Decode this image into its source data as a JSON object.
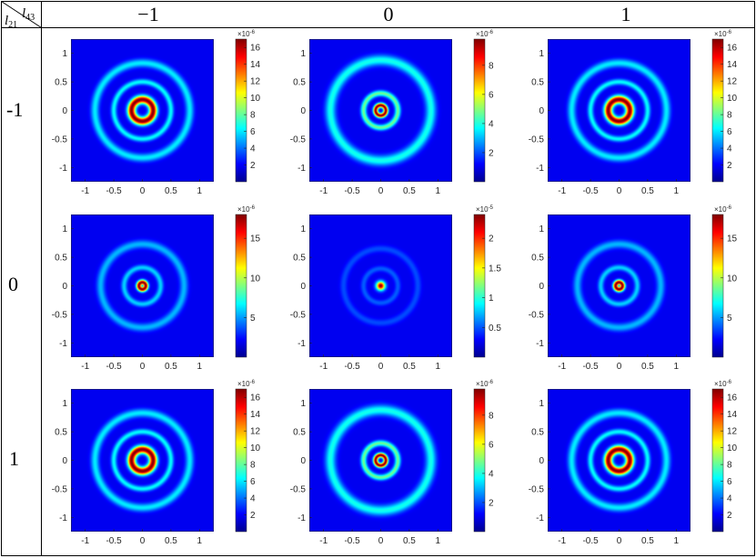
{
  "table": {
    "corner": {
      "col_symbol": "l",
      "col_sub": "43",
      "row_symbol": "l",
      "row_sub": "21"
    },
    "column_headers": [
      "−1",
      "0",
      "1"
    ],
    "row_headers": [
      "-1",
      "0",
      "1"
    ]
  },
  "chart_data": [
    {
      "type": "heatmap",
      "row": "-1",
      "col": "−1",
      "xlim": [
        -1.25,
        1.25
      ],
      "ylim": [
        -1.25,
        1.25
      ],
      "x_ticks": [
        "-1",
        "-0.5",
        "0",
        "0.5",
        "1"
      ],
      "y_ticks": [
        "1",
        "0.5",
        "0",
        "-0.5",
        "-1"
      ],
      "colorbar": {
        "exponent": "×10",
        "exponent_power": "-6",
        "max": 17,
        "ticks": [
          "16",
          "14",
          "12",
          "10",
          "8",
          "6",
          "4",
          "2"
        ]
      },
      "rings": [
        {
          "radius": 0.19,
          "width": 0.07,
          "level": 1.0
        },
        {
          "radius": 0.5,
          "width": 0.05,
          "level": 0.3
        },
        {
          "radius": 0.83,
          "width": 0.07,
          "level": 0.28
        },
        {
          "radius": 0.0,
          "width": 0.06,
          "level": 0.0
        }
      ]
    },
    {
      "type": "heatmap",
      "row": "-1",
      "col": "0",
      "xlim": [
        -1.25,
        1.25
      ],
      "ylim": [
        -1.25,
        1.25
      ],
      "x_ticks": [
        "-1",
        "-0.5",
        "0",
        "0.5",
        "1"
      ],
      "y_ticks": [
        "1",
        "0.5",
        "0",
        "-0.5",
        "-1"
      ],
      "colorbar": {
        "exponent": "×10",
        "exponent_power": "-6",
        "max": 9.8,
        "ticks": [
          "8",
          "6",
          "4",
          "2"
        ]
      },
      "rings": [
        {
          "radius": 0.09,
          "width": 0.04,
          "level": 1.0
        },
        {
          "radius": 0.3,
          "width": 0.05,
          "level": 0.42
        },
        {
          "radius": 0.88,
          "width": 0.09,
          "level": 0.32
        }
      ]
    },
    {
      "type": "heatmap",
      "row": "-1",
      "col": "1",
      "xlim": [
        -1.25,
        1.25
      ],
      "ylim": [
        -1.25,
        1.25
      ],
      "x_ticks": [
        "-1",
        "-0.5",
        "0",
        "0.5",
        "1"
      ],
      "y_ticks": [
        "1",
        "0.5",
        "0",
        "-0.5",
        "-1"
      ],
      "colorbar": {
        "exponent": "×10",
        "exponent_power": "-6",
        "max": 17,
        "ticks": [
          "16",
          "14",
          "12",
          "10",
          "8",
          "6",
          "4",
          "2"
        ]
      },
      "rings": [
        {
          "radius": 0.19,
          "width": 0.07,
          "level": 1.0
        },
        {
          "radius": 0.5,
          "width": 0.05,
          "level": 0.3
        },
        {
          "radius": 0.83,
          "width": 0.07,
          "level": 0.28
        }
      ]
    },
    {
      "type": "heatmap",
      "row": "0",
      "col": "−1",
      "xlim": [
        -1.25,
        1.25
      ],
      "ylim": [
        -1.25,
        1.25
      ],
      "x_ticks": [
        "-1",
        "-0.5",
        "0",
        "0.5",
        "1"
      ],
      "y_ticks": [
        "1",
        "0.5",
        "0",
        "-0.5",
        "-1"
      ],
      "colorbar": {
        "exponent": "×10",
        "exponent_power": "-6",
        "max": 18,
        "ticks": [
          "15",
          "10",
          "5"
        ]
      },
      "rings": [
        {
          "radius": 0.06,
          "width": 0.045,
          "level": 1.0
        },
        {
          "radius": 0.32,
          "width": 0.05,
          "level": 0.25
        },
        {
          "radius": 0.73,
          "width": 0.07,
          "level": 0.22
        }
      ]
    },
    {
      "type": "heatmap",
      "row": "0",
      "col": "0",
      "xlim": [
        -1.25,
        1.25
      ],
      "ylim": [
        -1.25,
        1.25
      ],
      "x_ticks": [
        "-1",
        "-0.5",
        "0",
        "0.5",
        "1"
      ],
      "y_ticks": [
        "1",
        "0.5",
        "0",
        "-0.5",
        "-1"
      ],
      "colorbar": {
        "exponent": "×10",
        "exponent_power": "-5",
        "max": 2.4,
        "ticks": [
          "2",
          "1.5",
          "1",
          "0.5"
        ]
      },
      "rings": [
        {
          "radius": 0.0,
          "width": 0.075,
          "level": 1.0
        },
        {
          "radius": 0.3,
          "width": 0.05,
          "level": 0.12
        },
        {
          "radius": 0.65,
          "width": 0.06,
          "level": 0.1
        }
      ]
    },
    {
      "type": "heatmap",
      "row": "0",
      "col": "1",
      "xlim": [
        -1.25,
        1.25
      ],
      "ylim": [
        -1.25,
        1.25
      ],
      "x_ticks": [
        "-1",
        "-0.5",
        "0",
        "0.5",
        "1"
      ],
      "y_ticks": [
        "1",
        "0.5",
        "0",
        "-0.5",
        "-1"
      ],
      "colorbar": {
        "exponent": "×10",
        "exponent_power": "-6",
        "max": 18,
        "ticks": [
          "15",
          "10",
          "5"
        ]
      },
      "rings": [
        {
          "radius": 0.06,
          "width": 0.045,
          "level": 1.0
        },
        {
          "radius": 0.32,
          "width": 0.05,
          "level": 0.25
        },
        {
          "radius": 0.73,
          "width": 0.07,
          "level": 0.22
        }
      ]
    },
    {
      "type": "heatmap",
      "row": "1",
      "col": "−1",
      "xlim": [
        -1.25,
        1.25
      ],
      "ylim": [
        -1.25,
        1.25
      ],
      "x_ticks": [
        "-1",
        "-0.5",
        "0",
        "0.5",
        "1"
      ],
      "y_ticks": [
        "1",
        "0.5",
        "0",
        "-0.5",
        "-1"
      ],
      "colorbar": {
        "exponent": "×10",
        "exponent_power": "-6",
        "max": 17,
        "ticks": [
          "16",
          "14",
          "12",
          "10",
          "8",
          "6",
          "4",
          "2"
        ]
      },
      "rings": [
        {
          "radius": 0.19,
          "width": 0.07,
          "level": 1.0
        },
        {
          "radius": 0.5,
          "width": 0.05,
          "level": 0.3
        },
        {
          "radius": 0.83,
          "width": 0.07,
          "level": 0.28
        }
      ]
    },
    {
      "type": "heatmap",
      "row": "1",
      "col": "0",
      "xlim": [
        -1.25,
        1.25
      ],
      "ylim": [
        -1.25,
        1.25
      ],
      "x_ticks": [
        "-1",
        "-0.5",
        "0",
        "0.5",
        "1"
      ],
      "y_ticks": [
        "1",
        "0.5",
        "0",
        "-0.5",
        "-1"
      ],
      "colorbar": {
        "exponent": "×10",
        "exponent_power": "-6",
        "max": 9.8,
        "ticks": [
          "8",
          "6",
          "4",
          "2"
        ]
      },
      "rings": [
        {
          "radius": 0.09,
          "width": 0.04,
          "level": 1.0
        },
        {
          "radius": 0.3,
          "width": 0.05,
          "level": 0.42
        },
        {
          "radius": 0.88,
          "width": 0.09,
          "level": 0.32
        }
      ]
    },
    {
      "type": "heatmap",
      "row": "1",
      "col": "1",
      "xlim": [
        -1.25,
        1.25
      ],
      "ylim": [
        -1.25,
        1.25
      ],
      "x_ticks": [
        "-1",
        "-0.5",
        "0",
        "0.5",
        "1"
      ],
      "y_ticks": [
        "1",
        "0.5",
        "0",
        "-0.5",
        "-1"
      ],
      "colorbar": {
        "exponent": "×10",
        "exponent_power": "-6",
        "max": 17,
        "ticks": [
          "16",
          "14",
          "12",
          "10",
          "8",
          "6",
          "4",
          "2"
        ]
      },
      "rings": [
        {
          "radius": 0.19,
          "width": 0.07,
          "level": 1.0
        },
        {
          "radius": 0.5,
          "width": 0.05,
          "level": 0.3
        },
        {
          "radius": 0.83,
          "width": 0.07,
          "level": 0.28
        }
      ]
    }
  ]
}
